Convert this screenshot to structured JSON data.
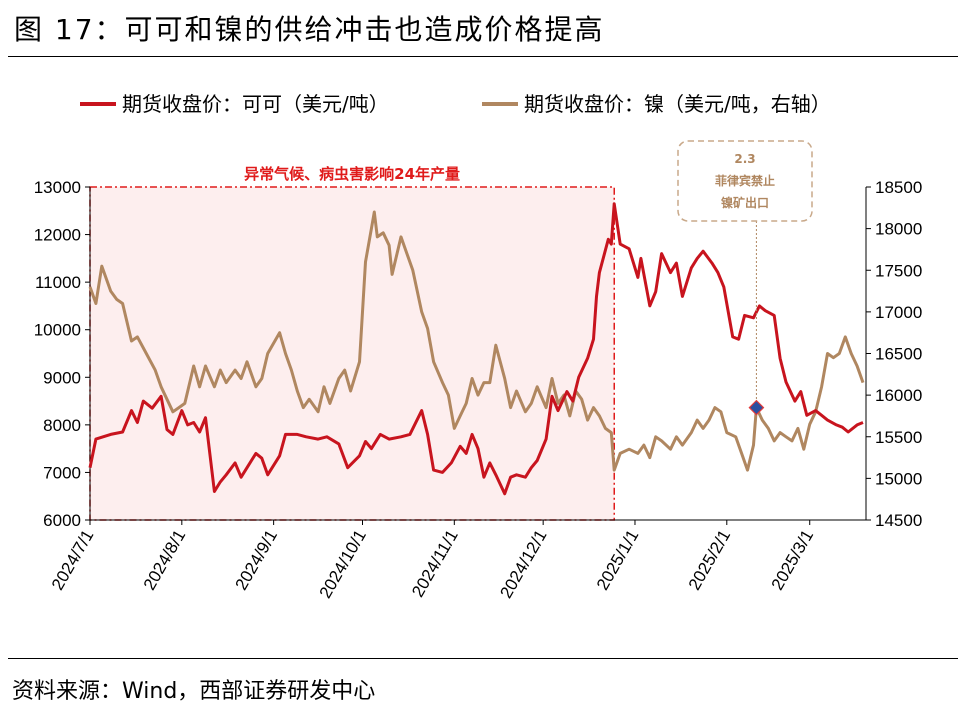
{
  "title": "图 17：可可和镍的供给冲击也造成价格提高",
  "source": "资料来源：Wind，西部证券研发中心",
  "chart_data": {
    "type": "line",
    "x_type": "date",
    "x_ticks": [
      "2024/7/1",
      "2024/8/1",
      "2024/9/1",
      "2024/10/1",
      "2024/11/1",
      "2024/12/1",
      "2025/1/1",
      "2025/2/1",
      "2025/3/1"
    ],
    "x_range": [
      "2024-07-01",
      "2025-03-20"
    ],
    "y_left": {
      "ylim": [
        6000,
        13000
      ],
      "ticks": [
        6000,
        7000,
        8000,
        9000,
        10000,
        11000,
        12000,
        13000
      ]
    },
    "y_right": {
      "ylim": [
        14500,
        18500
      ],
      "ticks": [
        14500,
        15000,
        15500,
        16000,
        16500,
        17000,
        17500,
        18000,
        18500
      ]
    },
    "series": [
      {
        "name": "期货收盘价：可可（美元/吨）",
        "color": "#c8141e",
        "axis": "left",
        "points": [
          [
            "2024-07-01",
            7100
          ],
          [
            "2024-07-03",
            7700
          ],
          [
            "2024-07-08",
            7800
          ],
          [
            "2024-07-12",
            7850
          ],
          [
            "2024-07-15",
            8300
          ],
          [
            "2024-07-17",
            8050
          ],
          [
            "2024-07-19",
            8500
          ],
          [
            "2024-07-22",
            8350
          ],
          [
            "2024-07-25",
            8600
          ],
          [
            "2024-07-27",
            7900
          ],
          [
            "2024-07-29",
            7800
          ],
          [
            "2024-08-01",
            8300
          ],
          [
            "2024-08-03",
            8000
          ],
          [
            "2024-08-05",
            8050
          ],
          [
            "2024-08-07",
            7850
          ],
          [
            "2024-08-09",
            8150
          ],
          [
            "2024-08-12",
            6600
          ],
          [
            "2024-08-14",
            6800
          ],
          [
            "2024-08-16",
            6950
          ],
          [
            "2024-08-19",
            7200
          ],
          [
            "2024-08-21",
            6900
          ],
          [
            "2024-08-23",
            7100
          ],
          [
            "2024-08-26",
            7400
          ],
          [
            "2024-08-28",
            7300
          ],
          [
            "2024-08-30",
            6950
          ],
          [
            "2024-09-03",
            7350
          ],
          [
            "2024-09-05",
            7800
          ],
          [
            "2024-09-09",
            7800
          ],
          [
            "2024-09-12",
            7750
          ],
          [
            "2024-09-16",
            7700
          ],
          [
            "2024-09-19",
            7750
          ],
          [
            "2024-09-23",
            7600
          ],
          [
            "2024-09-26",
            7100
          ],
          [
            "2024-09-30",
            7350
          ],
          [
            "2024-10-02",
            7650
          ],
          [
            "2024-10-04",
            7500
          ],
          [
            "2024-10-07",
            7800
          ],
          [
            "2024-10-10",
            7700
          ],
          [
            "2024-10-14",
            7750
          ],
          [
            "2024-10-17",
            7800
          ],
          [
            "2024-10-21",
            8300
          ],
          [
            "2024-10-23",
            7800
          ],
          [
            "2024-10-25",
            7050
          ],
          [
            "2024-10-28",
            7000
          ],
          [
            "2024-10-31",
            7200
          ],
          [
            "2024-11-03",
            7550
          ],
          [
            "2024-11-05",
            7400
          ],
          [
            "2024-11-07",
            7800
          ],
          [
            "2024-11-09",
            7500
          ],
          [
            "2024-11-11",
            6900
          ],
          [
            "2024-11-13",
            7200
          ],
          [
            "2024-11-15",
            6950
          ],
          [
            "2024-11-18",
            6550
          ],
          [
            "2024-11-20",
            6900
          ],
          [
            "2024-11-22",
            6950
          ],
          [
            "2024-11-25",
            6900
          ],
          [
            "2024-11-27",
            7100
          ],
          [
            "2024-11-29",
            7250
          ],
          [
            "2024-12-02",
            7700
          ],
          [
            "2024-12-04",
            8600
          ],
          [
            "2024-12-06",
            8300
          ],
          [
            "2024-12-09",
            8700
          ],
          [
            "2024-12-11",
            8500
          ],
          [
            "2024-12-13",
            9000
          ],
          [
            "2024-12-16",
            9400
          ],
          [
            "2024-12-18",
            9800
          ],
          [
            "2024-12-19",
            10700
          ],
          [
            "2024-12-20",
            11200
          ],
          [
            "2024-12-23",
            11900
          ],
          [
            "2024-12-24",
            11800
          ],
          [
            "2024-12-25",
            12650
          ],
          [
            "2024-12-27",
            11800
          ],
          [
            "2024-12-30",
            11700
          ],
          [
            "2025-01-02",
            11100
          ],
          [
            "2025-01-03",
            11500
          ],
          [
            "2025-01-06",
            10500
          ],
          [
            "2025-01-08",
            10800
          ],
          [
            "2025-01-10",
            11600
          ],
          [
            "2025-01-13",
            11200
          ],
          [
            "2025-01-15",
            11400
          ],
          [
            "2025-01-17",
            10700
          ],
          [
            "2025-01-20",
            11300
          ],
          [
            "2025-01-22",
            11500
          ],
          [
            "2025-01-24",
            11650
          ],
          [
            "2025-01-27",
            11400
          ],
          [
            "2025-01-29",
            11200
          ],
          [
            "2025-01-31",
            10900
          ],
          [
            "2025-02-03",
            9850
          ],
          [
            "2025-02-05",
            9800
          ],
          [
            "2025-02-07",
            10300
          ],
          [
            "2025-02-10",
            10250
          ],
          [
            "2025-02-12",
            10500
          ],
          [
            "2025-02-14",
            10400
          ],
          [
            "2025-02-17",
            10300
          ],
          [
            "2025-02-19",
            9400
          ],
          [
            "2025-02-21",
            8900
          ],
          [
            "2025-02-24",
            8500
          ],
          [
            "2025-02-26",
            8700
          ],
          [
            "2025-02-28",
            8200
          ],
          [
            "2025-03-03",
            8300
          ],
          [
            "2025-03-05",
            8200
          ],
          [
            "2025-03-07",
            8100
          ],
          [
            "2025-03-10",
            8000
          ],
          [
            "2025-03-12",
            7950
          ],
          [
            "2025-03-14",
            7850
          ],
          [
            "2025-03-17",
            8000
          ],
          [
            "2025-03-19",
            8050
          ]
        ]
      },
      {
        "name": "期货收盘价：镍（美元/吨，右轴）",
        "color": "#b08760",
        "axis": "right",
        "points": [
          [
            "2024-07-01",
            17300
          ],
          [
            "2024-07-03",
            17100
          ],
          [
            "2024-07-05",
            17550
          ],
          [
            "2024-07-08",
            17250
          ],
          [
            "2024-07-10",
            17150
          ],
          [
            "2024-07-12",
            17100
          ],
          [
            "2024-07-15",
            16650
          ],
          [
            "2024-07-17",
            16700
          ],
          [
            "2024-07-20",
            16500
          ],
          [
            "2024-07-23",
            16300
          ],
          [
            "2024-07-25",
            16100
          ],
          [
            "2024-07-29",
            15800
          ],
          [
            "2024-07-31",
            15850
          ],
          [
            "2024-08-02",
            15900
          ],
          [
            "2024-08-05",
            16350
          ],
          [
            "2024-08-07",
            16100
          ],
          [
            "2024-08-09",
            16350
          ],
          [
            "2024-08-12",
            16100
          ],
          [
            "2024-08-14",
            16300
          ],
          [
            "2024-08-16",
            16150
          ],
          [
            "2024-08-19",
            16300
          ],
          [
            "2024-08-21",
            16200
          ],
          [
            "2024-08-23",
            16400
          ],
          [
            "2024-08-26",
            16100
          ],
          [
            "2024-08-28",
            16200
          ],
          [
            "2024-08-30",
            16500
          ],
          [
            "2024-09-03",
            16750
          ],
          [
            "2024-09-05",
            16500
          ],
          [
            "2024-09-07",
            16300
          ],
          [
            "2024-09-09",
            16050
          ],
          [
            "2024-09-11",
            15850
          ],
          [
            "2024-09-13",
            15950
          ],
          [
            "2024-09-16",
            15800
          ],
          [
            "2024-09-18",
            16100
          ],
          [
            "2024-09-20",
            15900
          ],
          [
            "2024-09-23",
            16200
          ],
          [
            "2024-09-25",
            16300
          ],
          [
            "2024-09-27",
            16050
          ],
          [
            "2024-09-30",
            16400
          ],
          [
            "2024-10-02",
            17600
          ],
          [
            "2024-10-04",
            18000
          ],
          [
            "2024-10-05",
            18200
          ],
          [
            "2024-10-06",
            17900
          ],
          [
            "2024-10-08",
            17950
          ],
          [
            "2024-10-10",
            17800
          ],
          [
            "2024-10-11",
            17450
          ],
          [
            "2024-10-14",
            17900
          ],
          [
            "2024-10-16",
            17700
          ],
          [
            "2024-10-18",
            17500
          ],
          [
            "2024-10-21",
            17000
          ],
          [
            "2024-10-23",
            16800
          ],
          [
            "2024-10-25",
            16400
          ],
          [
            "2024-10-28",
            16150
          ],
          [
            "2024-10-30",
            16000
          ],
          [
            "2024-11-01",
            15600
          ],
          [
            "2024-11-03",
            15750
          ],
          [
            "2024-11-05",
            15900
          ],
          [
            "2024-11-07",
            16200
          ],
          [
            "2024-11-09",
            16000
          ],
          [
            "2024-11-11",
            16150
          ],
          [
            "2024-11-13",
            16150
          ],
          [
            "2024-11-15",
            16600
          ],
          [
            "2024-11-18",
            16200
          ],
          [
            "2024-11-20",
            15850
          ],
          [
            "2024-11-22",
            16050
          ],
          [
            "2024-11-25",
            15800
          ],
          [
            "2024-11-27",
            15900
          ],
          [
            "2024-11-29",
            16100
          ],
          [
            "2024-12-02",
            15850
          ],
          [
            "2024-12-04",
            16200
          ],
          [
            "2024-12-06",
            15900
          ],
          [
            "2024-12-08",
            16000
          ],
          [
            "2024-12-10",
            15750
          ],
          [
            "2024-12-12",
            16050
          ],
          [
            "2024-12-14",
            15950
          ],
          [
            "2024-12-16",
            15700
          ],
          [
            "2024-12-18",
            15850
          ],
          [
            "2024-12-20",
            15750
          ],
          [
            "2024-12-22",
            15600
          ],
          [
            "2024-12-24",
            15550
          ],
          [
            "2024-12-25",
            15100
          ],
          [
            "2024-12-27",
            15300
          ],
          [
            "2024-12-30",
            15350
          ],
          [
            "2025-01-02",
            15300
          ],
          [
            "2025-01-04",
            15400
          ],
          [
            "2025-01-06",
            15250
          ],
          [
            "2025-01-08",
            15500
          ],
          [
            "2025-01-10",
            15450
          ],
          [
            "2025-01-13",
            15350
          ],
          [
            "2025-01-15",
            15500
          ],
          [
            "2025-01-17",
            15400
          ],
          [
            "2025-01-20",
            15550
          ],
          [
            "2025-01-22",
            15700
          ],
          [
            "2025-01-24",
            15600
          ],
          [
            "2025-01-26",
            15700
          ],
          [
            "2025-01-28",
            15850
          ],
          [
            "2025-01-30",
            15800
          ],
          [
            "2025-02-01",
            15550
          ],
          [
            "2025-02-04",
            15500
          ],
          [
            "2025-02-06",
            15300
          ],
          [
            "2025-02-08",
            15100
          ],
          [
            "2025-02-10",
            15400
          ],
          [
            "2025-02-11",
            15850
          ],
          [
            "2025-02-13",
            15700
          ],
          [
            "2025-02-15",
            15600
          ],
          [
            "2025-02-17",
            15450
          ],
          [
            "2025-02-19",
            15550
          ],
          [
            "2025-02-21",
            15500
          ],
          [
            "2025-02-23",
            15450
          ],
          [
            "2025-02-25",
            15600
          ],
          [
            "2025-02-27",
            15350
          ],
          [
            "2025-03-01",
            15650
          ],
          [
            "2025-03-03",
            15800
          ],
          [
            "2025-03-05",
            16100
          ],
          [
            "2025-03-07",
            16500
          ],
          [
            "2025-03-09",
            16450
          ],
          [
            "2025-03-11",
            16500
          ],
          [
            "2025-03-13",
            16700
          ],
          [
            "2025-03-15",
            16500
          ],
          [
            "2025-03-17",
            16350
          ],
          [
            "2025-03-19",
            16150
          ]
        ]
      }
    ],
    "shaded_region": {
      "start": "2024-07-01",
      "end": "2024-12-25",
      "label": "异常气候、病虫害影响24年产量",
      "color": "#e01b1b"
    },
    "annotation": {
      "date": "2025-02-11",
      "value": 15850,
      "axis": "right",
      "lines": [
        "2.3",
        "菲律宾禁止",
        "镍矿出口"
      ],
      "marker_color": "#2b4fa0"
    },
    "legend_position": "top",
    "grid": false
  }
}
